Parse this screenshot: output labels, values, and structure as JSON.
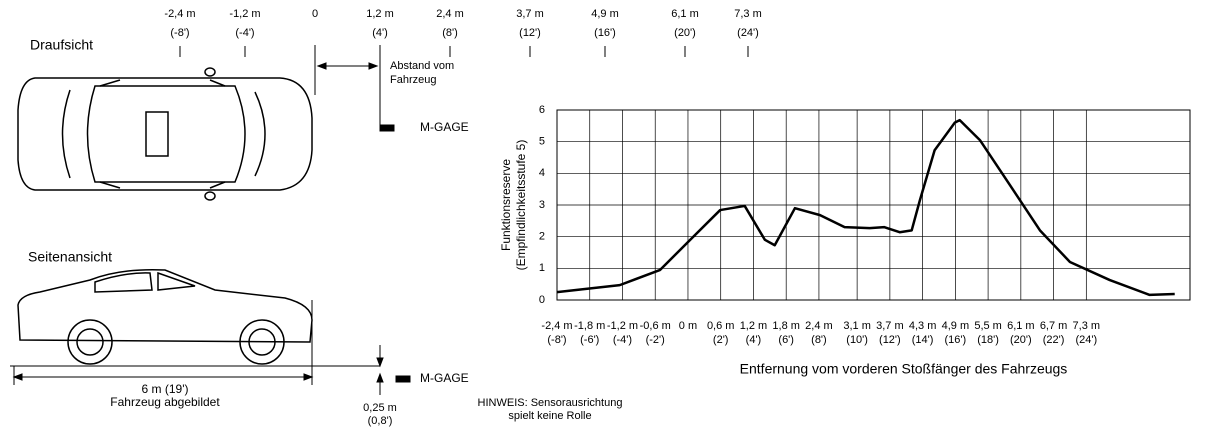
{
  "chart_data": {
    "type": "line",
    "y_label_lines": [
      "Funktionsreserve",
      "(Empfindlichkeitsstufe 5)"
    ],
    "x_label": "Entfernung vom vorderen Stoßfänger des Fahrzeugs",
    "x": [
      -2.4,
      -1.25,
      -0.51,
      0.04,
      0.59,
      1.04,
      1.41,
      1.59,
      1.96,
      2.42,
      2.87,
      3.33,
      3.6,
      3.88,
      4.1,
      4.25,
      4.52,
      4.89,
      4.98,
      5.35,
      5.9,
      6.45,
      7.0,
      7.73,
      8.46,
      8.92
    ],
    "series": [
      {
        "color": "#000000",
        "values": [
          0.25,
          0.47,
          0.95,
          1.9,
          2.84,
          2.97,
          1.9,
          1.73,
          2.9,
          2.68,
          2.3,
          2.27,
          2.3,
          2.14,
          2.2,
          3.15,
          4.73,
          5.6,
          5.68,
          5.05,
          3.63,
          2.2,
          1.2,
          0.63,
          0.16,
          0.19
        ]
      }
    ],
    "xlim": [
      -2.4,
      9.2
    ],
    "ylim": [
      0,
      6
    ],
    "xticks": [
      {
        "value": -2.4,
        "label": "-2,4 m"
      },
      {
        "value": -1.8,
        "label": "-1,8 m"
      },
      {
        "value": -1.2,
        "label": "-1,2 m"
      },
      {
        "value": -0.6,
        "label": "-0,6 m"
      },
      {
        "value": 0,
        "label": "0 m"
      },
      {
        "value": 0.6,
        "label": "0,6 m"
      },
      {
        "value": 1.2,
        "label": "1,2 m"
      },
      {
        "value": 1.8,
        "label": "1,8 m"
      },
      {
        "value": 2.4,
        "label": "2,4 m"
      },
      {
        "value": 3.1,
        "label": "3,1 m"
      },
      {
        "value": 3.7,
        "label": "3,7 m"
      },
      {
        "value": 4.3,
        "label": "4,3 m"
      },
      {
        "value": 4.9,
        "label": "4,9 m"
      },
      {
        "value": 5.5,
        "label": "5,5 m"
      },
      {
        "value": 6.1,
        "label": "6,1 m"
      },
      {
        "value": 6.7,
        "label": "6,7 m"
      },
      {
        "value": 7.3,
        "label": "7,3 m"
      }
    ],
    "xtick_feet": [
      "(-8')",
      "(-6')",
      "(-4')",
      "(-2')",
      "",
      "(2')",
      "(4')",
      "(6')",
      "(8')",
      "(10')",
      "(12')",
      "(14')",
      "(16')",
      "(18')",
      "(20')",
      "(22')",
      "(24')"
    ],
    "yticks": [
      0,
      1,
      2,
      3,
      4,
      5,
      6
    ],
    "grid": true
  },
  "diagram": {
    "top_view_title": "Draufsicht",
    "side_view_title": "Seitenansicht",
    "distance_label": [
      "Abstand vom",
      "Fahrzeug"
    ],
    "sensor_top": "M-GAGE",
    "sensor_side": "M-GAGE",
    "vehicle_length": "6 m (19')",
    "vehicle_caption": "Fahrzeug abgebildet",
    "sensor_height": [
      "0,25 m",
      "(0,8')"
    ],
    "note": [
      "HINWEIS: Sensorausrichtung",
      "spielt keine Rolle"
    ],
    "scale": [
      [
        "-2,4 m",
        "(-8')"
      ],
      [
        "-1,2 m",
        "(-4')"
      ],
      [
        "0",
        ""
      ],
      [
        "1,2 m",
        "(4')"
      ],
      [
        "2,4 m",
        "(8')"
      ],
      [
        "3,7 m",
        "(12')"
      ],
      [
        "4,9 m",
        "(16')"
      ],
      [
        "6,1 m",
        "(20')"
      ],
      [
        "7,3 m",
        "(24')"
      ]
    ]
  }
}
